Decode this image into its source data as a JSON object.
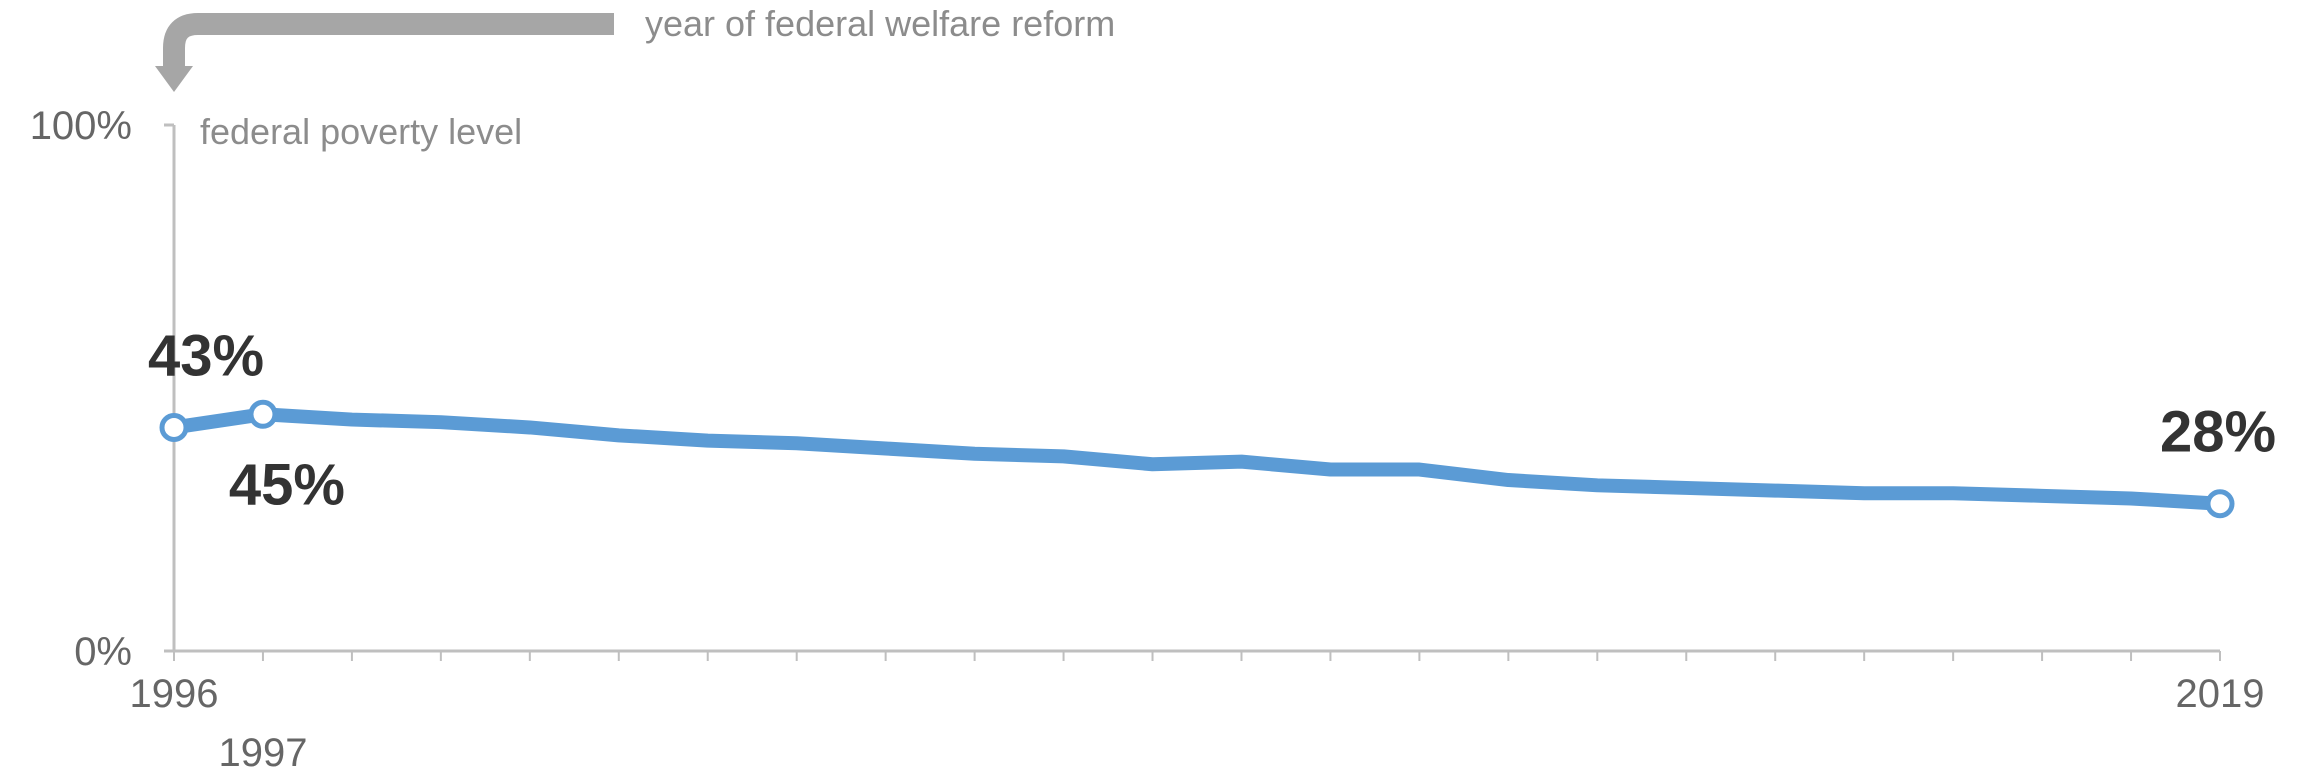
{
  "annotations": {
    "welfare_reform": "year of federal welfare  reform",
    "poverty_level": "federal poverty level"
  },
  "colors": {
    "line": "#5b9bd5",
    "axis": "#bfbfbf",
    "arrow": "#a6a6a6",
    "text_muted": "#8c8c8c",
    "label": "#333333"
  },
  "chart_data": {
    "type": "line",
    "ylim": [
      0,
      100
    ],
    "y_tick_labels": [
      "0%",
      "100%"
    ],
    "x_tick_labels": [
      {
        "year": 1996,
        "label": "1996"
      },
      {
        "year": 1997,
        "label": "1997"
      },
      {
        "year": 2019,
        "label": "2019"
      }
    ],
    "x": [
      1996,
      1997,
      1998,
      1999,
      2000,
      2001,
      2002,
      2003,
      2004,
      2005,
      2006,
      2007,
      2008,
      2009,
      2010,
      2011,
      2012,
      2013,
      2014,
      2015,
      2016,
      2017,
      2018,
      2019
    ],
    "series": [
      {
        "values": [
          42.5,
          45,
          44,
          43.5,
          42.5,
          41,
          40,
          39.5,
          38.5,
          37.5,
          37,
          35.5,
          36,
          34.5,
          34.5,
          32.5,
          31.5,
          31,
          30.5,
          30,
          30,
          29.5,
          29,
          28
        ]
      }
    ],
    "data_labels": [
      {
        "year": 1996,
        "text": "43%",
        "position": "above"
      },
      {
        "year": 1997,
        "text": "45%",
        "position": "below"
      },
      {
        "year": 2019,
        "text": "28%",
        "position": "above"
      }
    ],
    "markers": [
      1996,
      1997,
      2019
    ],
    "grid": false
  }
}
